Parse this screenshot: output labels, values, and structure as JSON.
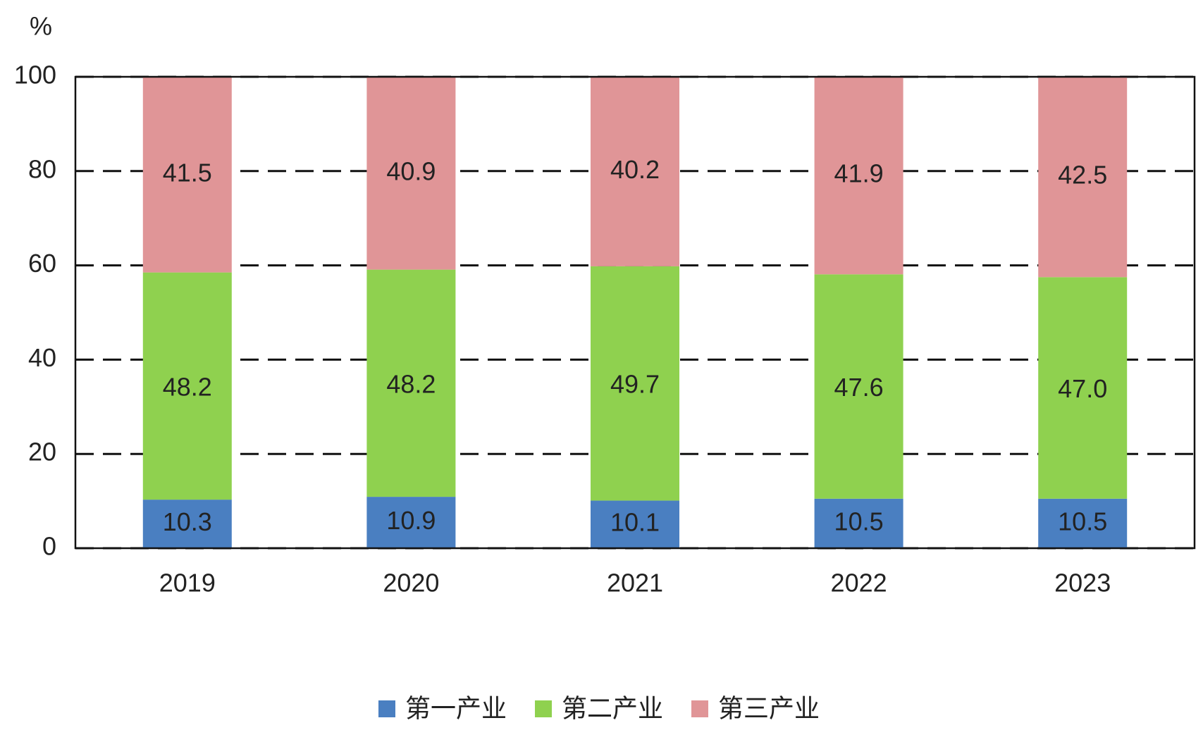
{
  "chart_data": {
    "type": "stacked_bar",
    "ylabel": "%",
    "categories": [
      "2019",
      "2020",
      "2021",
      "2022",
      "2023"
    ],
    "series": [
      {
        "name": "第一产业",
        "color": "#4a7fc1",
        "values": [
          10.3,
          10.9,
          10.1,
          10.5,
          10.5
        ]
      },
      {
        "name": "第二产业",
        "color": "#8fd14f",
        "values": [
          48.2,
          48.2,
          49.7,
          47.6,
          47
        ],
        "value_labels": [
          "48.2",
          "48.2",
          "49.7",
          "47.6",
          "47.0"
        ]
      },
      {
        "name": "第三产业",
        "color": "#e09597",
        "values": [
          41.5,
          40.9,
          40.2,
          41.9,
          42.5
        ]
      }
    ],
    "ylim": [
      0,
      100
    ],
    "yticks": [
      0,
      20,
      40,
      60,
      80,
      100
    ],
    "grid": true
  }
}
